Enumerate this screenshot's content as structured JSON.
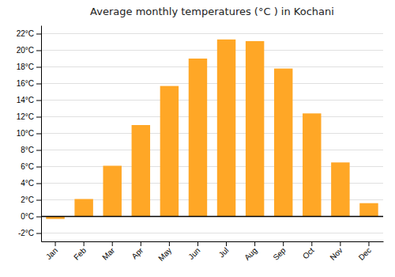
{
  "chart_data": {
    "type": "bar",
    "title": "Average monthly temperatures (°C ) in Kochani",
    "categories": [
      "Jan",
      "Feb",
      "Mar",
      "Apr",
      "May",
      "Jun",
      "Jul",
      "Aug",
      "Sep",
      "Oct",
      "Nov",
      "Dec"
    ],
    "values": [
      -0.3,
      2.1,
      6.1,
      11.0,
      15.7,
      19.0,
      21.3,
      21.1,
      17.8,
      12.4,
      6.5,
      1.6
    ],
    "color": "#FFA726",
    "ylim": [
      -3,
      23
    ],
    "yticks": [
      {
        "value": -2,
        "label": "-2°C"
      },
      {
        "value": 0,
        "label": "0°C"
      },
      {
        "value": 2,
        "label": "2°C"
      },
      {
        "value": 4,
        "label": "4°C"
      },
      {
        "value": 6,
        "label": "6°C"
      },
      {
        "value": 8,
        "label": "8°C"
      },
      {
        "value": 10,
        "label": "10°C"
      },
      {
        "value": 12,
        "label": "12°C"
      },
      {
        "value": 14,
        "label": "14°C"
      },
      {
        "value": 16,
        "label": "16°C"
      },
      {
        "value": 18,
        "label": "18°C"
      },
      {
        "value": 20,
        "label": "20°C"
      },
      {
        "value": 22,
        "label": "22°C"
      }
    ],
    "grid": true
  }
}
